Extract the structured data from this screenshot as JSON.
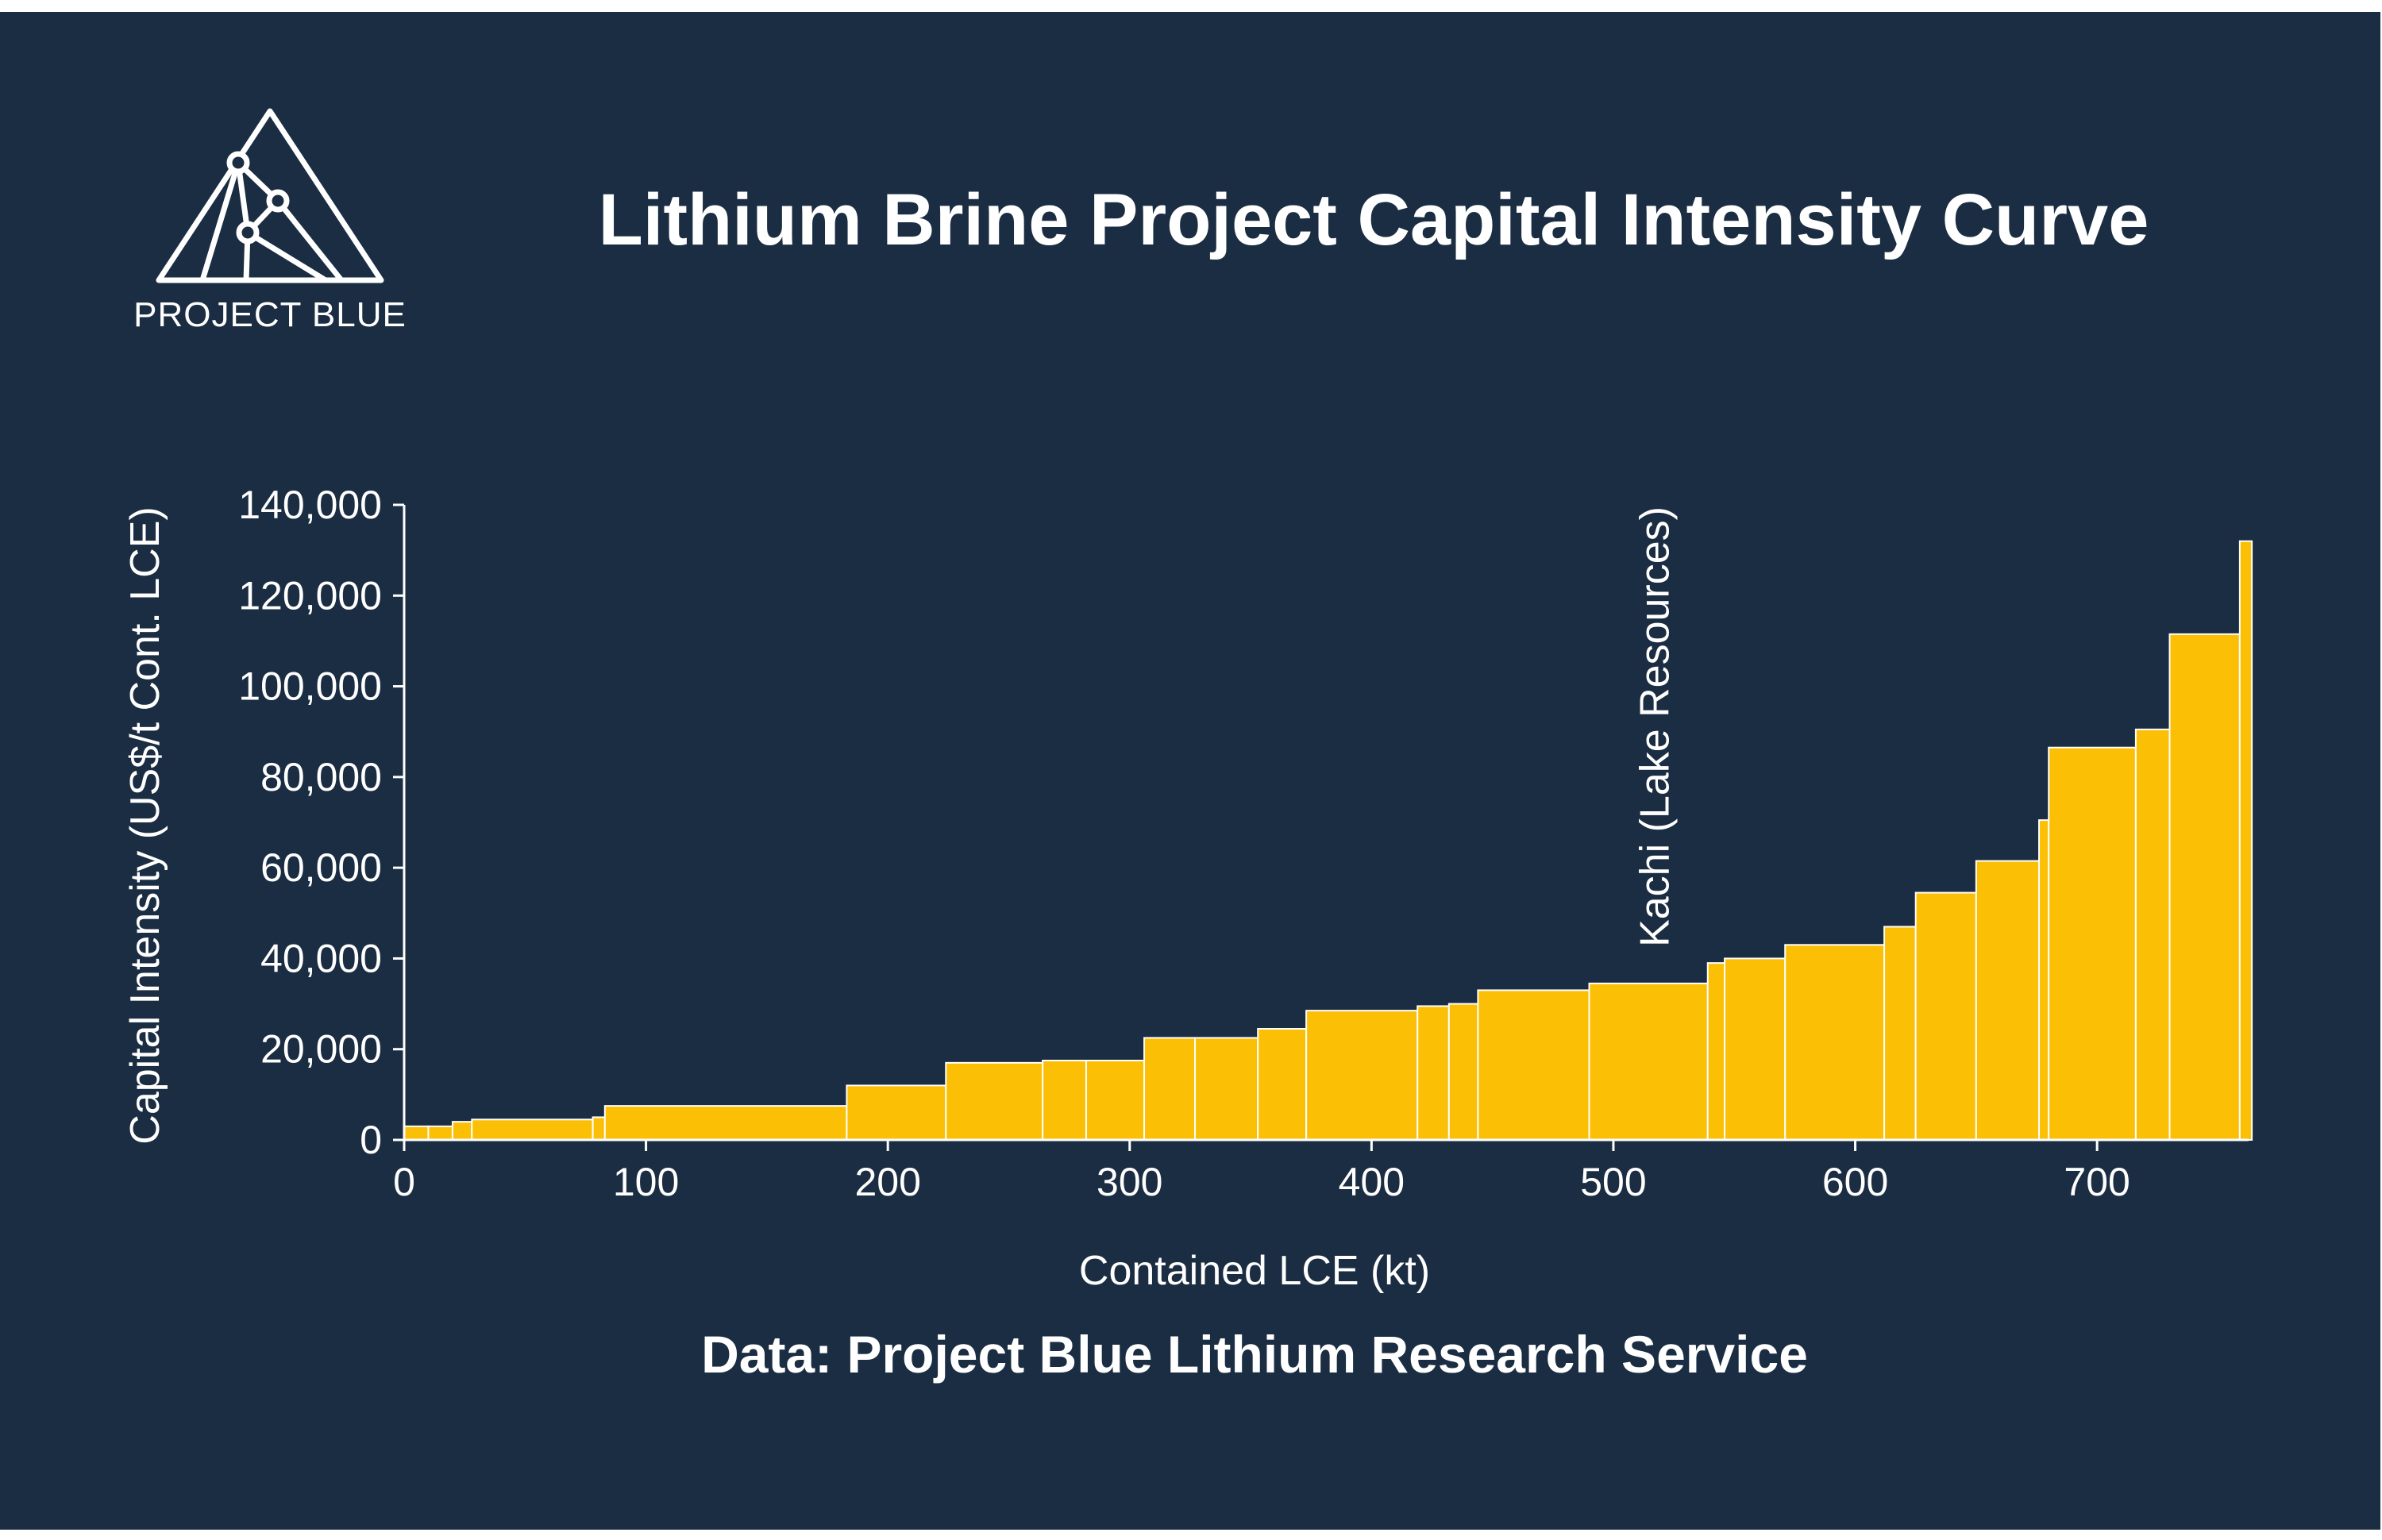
{
  "brand": {
    "logo_text": "PROJECT BLUE"
  },
  "colors": {
    "background": "#1b2d42",
    "bar": "#fbbf06",
    "bar_edge": "#ffffff",
    "text": "#ffffff"
  },
  "source_note": "Data: Project Blue Lithium Research Service",
  "chart_data": {
    "type": "bar",
    "variant": "variable-width step (cost curve)",
    "title": "Lithium Brine Project Capital Intensity Curve",
    "xlabel": "Contained LCE (kt)",
    "ylabel": "Capital Intensity (US$/t Cont. LCE)",
    "xlim": [
      0,
      770
    ],
    "ylim": [
      0,
      140000
    ],
    "x_ticks": [
      "0",
      "100",
      "200",
      "300",
      "400",
      "500",
      "600",
      "700"
    ],
    "y_ticks": [
      "0",
      "20,000",
      "40,000",
      "60,000",
      "80,000",
      "100,000",
      "120,000",
      "140,000"
    ],
    "grid": false,
    "legend": "none",
    "annotation": {
      "text": "Kachi (Lake Resources)",
      "x": 536,
      "orientation": "vertical"
    },
    "projects": [
      {
        "x_start": 0,
        "x_end": 10,
        "value": 3000
      },
      {
        "x_start": 10,
        "x_end": 20,
        "value": 3000
      },
      {
        "x_start": 20,
        "x_end": 28,
        "value": 4000
      },
      {
        "x_start": 28,
        "x_end": 78,
        "value": 4500
      },
      {
        "x_start": 78,
        "x_end": 83,
        "value": 5000
      },
      {
        "x_start": 83,
        "x_end": 183,
        "value": 7500
      },
      {
        "x_start": 183,
        "x_end": 224,
        "value": 12000
      },
      {
        "x_start": 224,
        "x_end": 264,
        "value": 17000
      },
      {
        "x_start": 264,
        "x_end": 282,
        "value": 17500
      },
      {
        "x_start": 282,
        "x_end": 306,
        "value": 17500
      },
      {
        "x_start": 306,
        "x_end": 327,
        "value": 22500
      },
      {
        "x_start": 327,
        "x_end": 353,
        "value": 22500
      },
      {
        "x_start": 353,
        "x_end": 373,
        "value": 24500
      },
      {
        "x_start": 373,
        "x_end": 419,
        "value": 28500
      },
      {
        "x_start": 419,
        "x_end": 432,
        "value": 29500
      },
      {
        "x_start": 432,
        "x_end": 444,
        "value": 30000
      },
      {
        "x_start": 444,
        "x_end": 490,
        "value": 33000
      },
      {
        "x_start": 490,
        "x_end": 539,
        "value": 34500
      },
      {
        "x_start": 539,
        "x_end": 546,
        "value": 39000
      },
      {
        "x_start": 546,
        "x_end": 571,
        "value": 40000
      },
      {
        "x_start": 571,
        "x_end": 612,
        "value": 43000
      },
      {
        "x_start": 612,
        "x_end": 625,
        "value": 47000
      },
      {
        "x_start": 625,
        "x_end": 650,
        "value": 54500
      },
      {
        "x_start": 650,
        "x_end": 676,
        "value": 61500
      },
      {
        "x_start": 676,
        "x_end": 680,
        "value": 70500
      },
      {
        "x_start": 680,
        "x_end": 716,
        "value": 86500
      },
      {
        "x_start": 716,
        "x_end": 730,
        "value": 90500
      },
      {
        "x_start": 730,
        "x_end": 759,
        "value": 111500
      },
      {
        "x_start": 759,
        "x_end": 764,
        "value": 132000
      }
    ]
  }
}
